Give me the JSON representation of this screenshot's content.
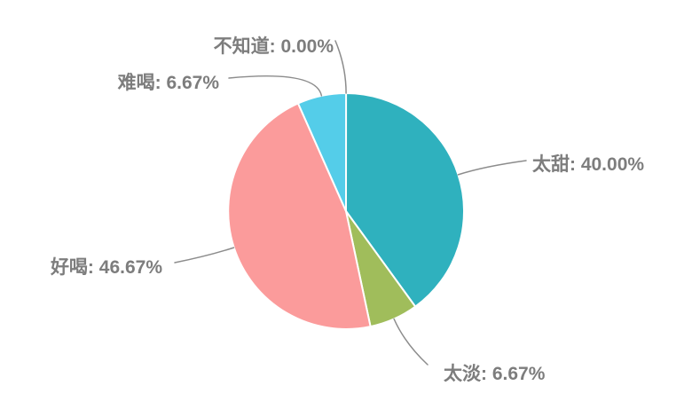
{
  "page": {
    "background": "#ffffff"
  },
  "chart_data": {
    "type": "pie",
    "title": "",
    "unit": "%",
    "start_angle": "top",
    "direction": "clockwise",
    "legend": "none",
    "grid": "off",
    "categories": [
      "太甜",
      "太淡",
      "好喝",
      "难喝",
      "不知道"
    ],
    "values": [
      40.0,
      6.67,
      46.67,
      6.67,
      0.0
    ],
    "slices": [
      {
        "slug": "taitian",
        "name": "太甜",
        "value": 40.0,
        "display": "太甜: 40.00%",
        "color": "#2FB1BE",
        "line_end": [
          593,
          181
        ]
      },
      {
        "slug": "taidan",
        "name": "太淡",
        "value": 6.67,
        "display": "太淡: 6.67%",
        "color": "#A0BD5B",
        "line_end": [
          482,
          411
        ]
      },
      {
        "slug": "haohe",
        "name": "好喝",
        "value": 46.67,
        "display": "好喝: 46.67%",
        "color": "#FB9B9B",
        "line_end": [
          197,
          296
        ]
      },
      {
        "slug": "nanhe",
        "name": "难喝",
        "value": 6.67,
        "display": "难喝: 6.67%",
        "color": "#54CDE9",
        "line_end": [
          258,
          88
        ]
      },
      {
        "slug": "buzhidao",
        "name": "不知道",
        "value": 0.0,
        "display": "不知道: 0.00%",
        "color": null,
        "line_end": [
          378,
          46
        ]
      }
    ],
    "layout": {
      "center": [
        390,
        238
      ],
      "radius": 133,
      "slice_stroke": "#ffffff",
      "slice_stroke_width": 2,
      "label_line_color": "#8c8c8c",
      "label_line_width": 1.5,
      "label_line_elbow_offset": 30,
      "label_color": "#7d7d7d",
      "label_font_size": 21
    }
  }
}
